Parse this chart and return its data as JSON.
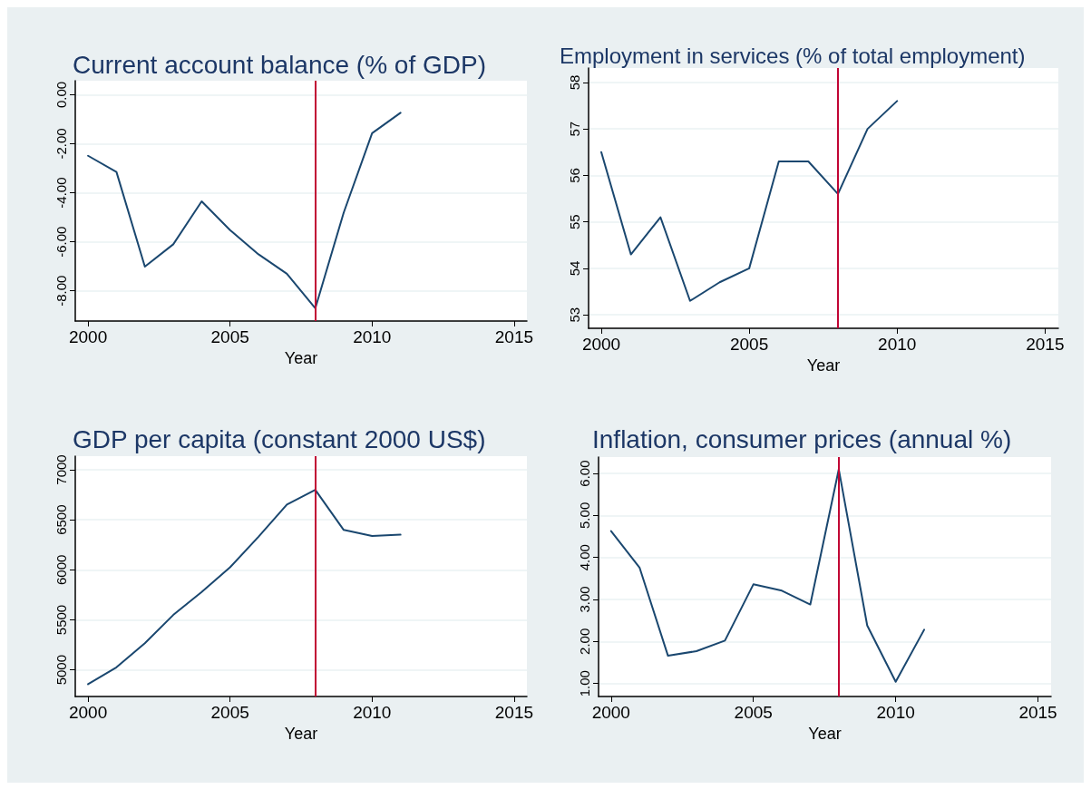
{
  "chart_data": [
    {
      "type": "line",
      "title": "Current account balance (% of GDP)",
      "xlabel": "Year",
      "x": [
        2000,
        2001,
        2002,
        2003,
        2004,
        2005,
        2006,
        2007,
        2008,
        2009,
        2010,
        2011
      ],
      "series": [
        {
          "color": "#1a476f",
          "values": [
            -2.49,
            -3.15,
            -7.01,
            -6.1,
            -4.35,
            -5.52,
            -6.51,
            -7.3,
            -8.71,
            -4.81,
            -1.57,
            -0.74
          ]
        }
      ],
      "xlim": [
        1999.55,
        2015.45
      ],
      "xticks": [
        2000,
        2005,
        2010,
        2015
      ],
      "ylim": [
        -9.23,
        0.57
      ],
      "yticks": [
        {
          "value": -8,
          "label": "-8.00"
        },
        {
          "value": -6,
          "label": "-6.00"
        },
        {
          "value": -4,
          "label": "-4.00"
        },
        {
          "value": -2,
          "label": "-2.00"
        },
        {
          "value": 0,
          "label": "0.00"
        }
      ],
      "ref_lines": [
        {
          "axis": "x",
          "value": 2008,
          "color": "#c10534"
        }
      ],
      "grid": "y",
      "marker": "none",
      "line_style": "solid"
    },
    {
      "type": "line",
      "title": "Employment in services (% of total employment)",
      "xlabel": "Year",
      "x": [
        2000,
        2001,
        2002,
        2003,
        2004,
        2005,
        2006,
        2007,
        2008,
        2009,
        2010
      ],
      "series": [
        {
          "color": "#1a476f",
          "values": [
            56.5,
            54.3,
            55.1,
            53.3,
            53.7,
            54.0,
            56.3,
            56.3,
            55.6,
            57.0,
            57.6
          ]
        }
      ],
      "xlim": [
        1999.57,
        2015.45
      ],
      "xticks": [
        2000,
        2005,
        2010,
        2015
      ],
      "ylim": [
        52.71,
        58.31
      ],
      "yticks": [
        53,
        54,
        55,
        56,
        57,
        58
      ],
      "ref_lines": [
        {
          "axis": "x",
          "value": 2008,
          "color": "#c10534"
        }
      ],
      "grid": "y",
      "marker": "none",
      "line_style": "solid"
    },
    {
      "type": "line",
      "title": "GDP per capita (constant 2000 US$)",
      "xlabel": "Year",
      "x": [
        2000,
        2001,
        2002,
        2003,
        2004,
        2005,
        2006,
        2007,
        2008,
        2009,
        2010,
        2011
      ],
      "series": [
        {
          "color": "#1a476f",
          "values": [
            4857,
            5026,
            5266,
            5549,
            5779,
            6026,
            6331,
            6653,
            6799,
            6399,
            6338,
            6351
          ]
        }
      ],
      "xlim": [
        1999.55,
        2015.45
      ],
      "xticks": [
        2000,
        2005,
        2010,
        2015
      ],
      "ylim": [
        4734,
        7136
      ],
      "yticks": [
        5000,
        5500,
        6000,
        6500,
        7000
      ],
      "ref_lines": [
        {
          "axis": "x",
          "value": 2008,
          "color": "#c10534"
        }
      ],
      "grid": "y",
      "marker": "none",
      "line_style": "solid"
    },
    {
      "type": "line",
      "title": "Inflation, consumer prices (annual %)",
      "xlabel": "Year",
      "x": [
        2000,
        2001,
        2002,
        2003,
        2004,
        2005,
        2006,
        2007,
        2008,
        2009,
        2010,
        2011
      ],
      "series": [
        {
          "color": "#1a476f",
          "values": [
            4.63,
            3.76,
            1.66,
            1.77,
            2.02,
            3.36,
            3.21,
            2.88,
            6.1,
            2.38,
            1.04,
            2.28
          ]
        }
      ],
      "xlim": [
        1999.56,
        2015.46
      ],
      "xticks": [
        2000,
        2005,
        2010,
        2015
      ],
      "ylim": [
        0.69,
        6.39
      ],
      "yticks": [
        {
          "value": 1,
          "label": "1.00"
        },
        {
          "value": 2,
          "label": "2.00"
        },
        {
          "value": 3,
          "label": "3.00"
        },
        {
          "value": 4,
          "label": "4.00"
        },
        {
          "value": 5,
          "label": "5.00"
        },
        {
          "value": 6,
          "label": "6.00"
        }
      ],
      "ref_lines": [
        {
          "axis": "x",
          "value": 2008,
          "color": "#c10534"
        }
      ],
      "grid": "y",
      "marker": "none",
      "line_style": "solid"
    }
  ]
}
